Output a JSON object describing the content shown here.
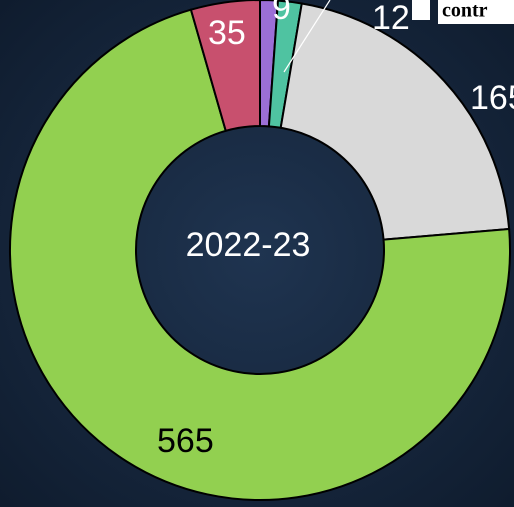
{
  "chart_data": {
    "type": "donut",
    "center_text": "2022-23",
    "categories": [
      null,
      null,
      null,
      null,
      null
    ],
    "values": [
      9,
      12,
      165,
      565,
      35
    ],
    "colors": [
      "#9b6fd6",
      "#4fc3a1",
      "#d9d9d9",
      "#92d050",
      "#c8506e"
    ],
    "label_colors": [
      "#ffffff",
      "#ffffff",
      "#ffffff",
      "#000000",
      "#ffffff"
    ],
    "legend_fragment": "contr"
  }
}
